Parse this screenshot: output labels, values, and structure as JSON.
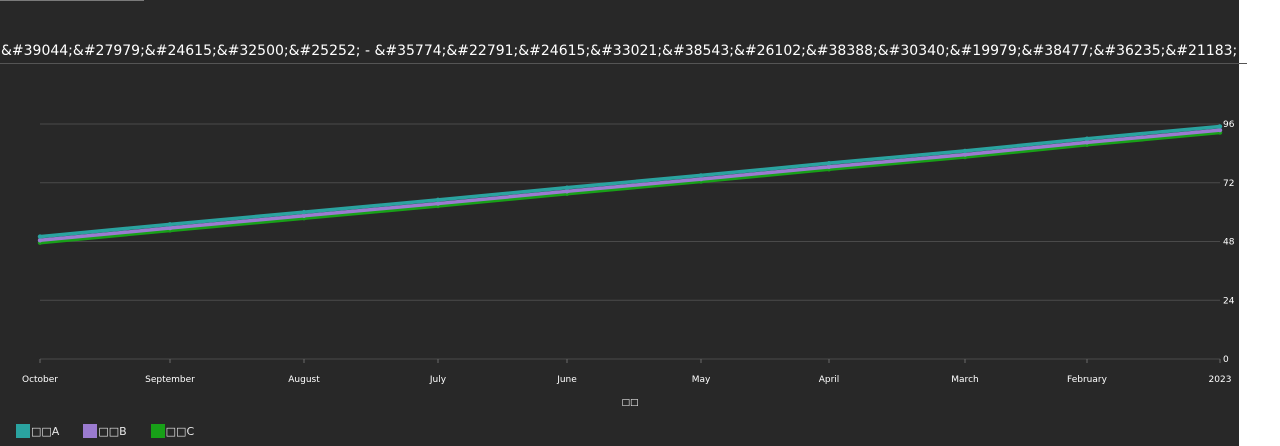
{
  "chart_data": {
    "type": "line",
    "title": "&#39044;&#27979;&#24615;&#32500;&#25252; - &#35774;&#22791;&#24615;&#33021;&#38543;&#26102;&#38388;&#30340;&#19979;&#38477;&#36235;&#21183;",
    "xlabel": "□□",
    "ylabel": "",
    "categories": [
      "October",
      "September",
      "August",
      "July",
      "June",
      "May",
      "April",
      "March",
      "February",
      "2023"
    ],
    "y_ticks": [
      0,
      24,
      48,
      72,
      96
    ],
    "ylim": [
      0,
      96
    ],
    "grid": true,
    "legend_position": "bottom-left",
    "series": [
      {
        "name": "□□A",
        "color": "#2aa3a0",
        "values": [
          50,
          55,
          60,
          65,
          70,
          75,
          80,
          85,
          90,
          95
        ]
      },
      {
        "name": "□□B",
        "color": "#9b7bd0",
        "values": [
          48.5,
          53.5,
          58.5,
          63.5,
          68.5,
          73.5,
          78.5,
          83.5,
          88.5,
          93.5
        ]
      },
      {
        "name": "□□C",
        "color": "#18a018",
        "values": [
          47.5,
          52.5,
          57.5,
          62.5,
          67.5,
          72.5,
          77.5,
          82.5,
          87.5,
          92.5
        ]
      }
    ]
  },
  "colors": {
    "background": "#282828",
    "gridline": "#4a4a4a",
    "text": "#ffffff"
  }
}
